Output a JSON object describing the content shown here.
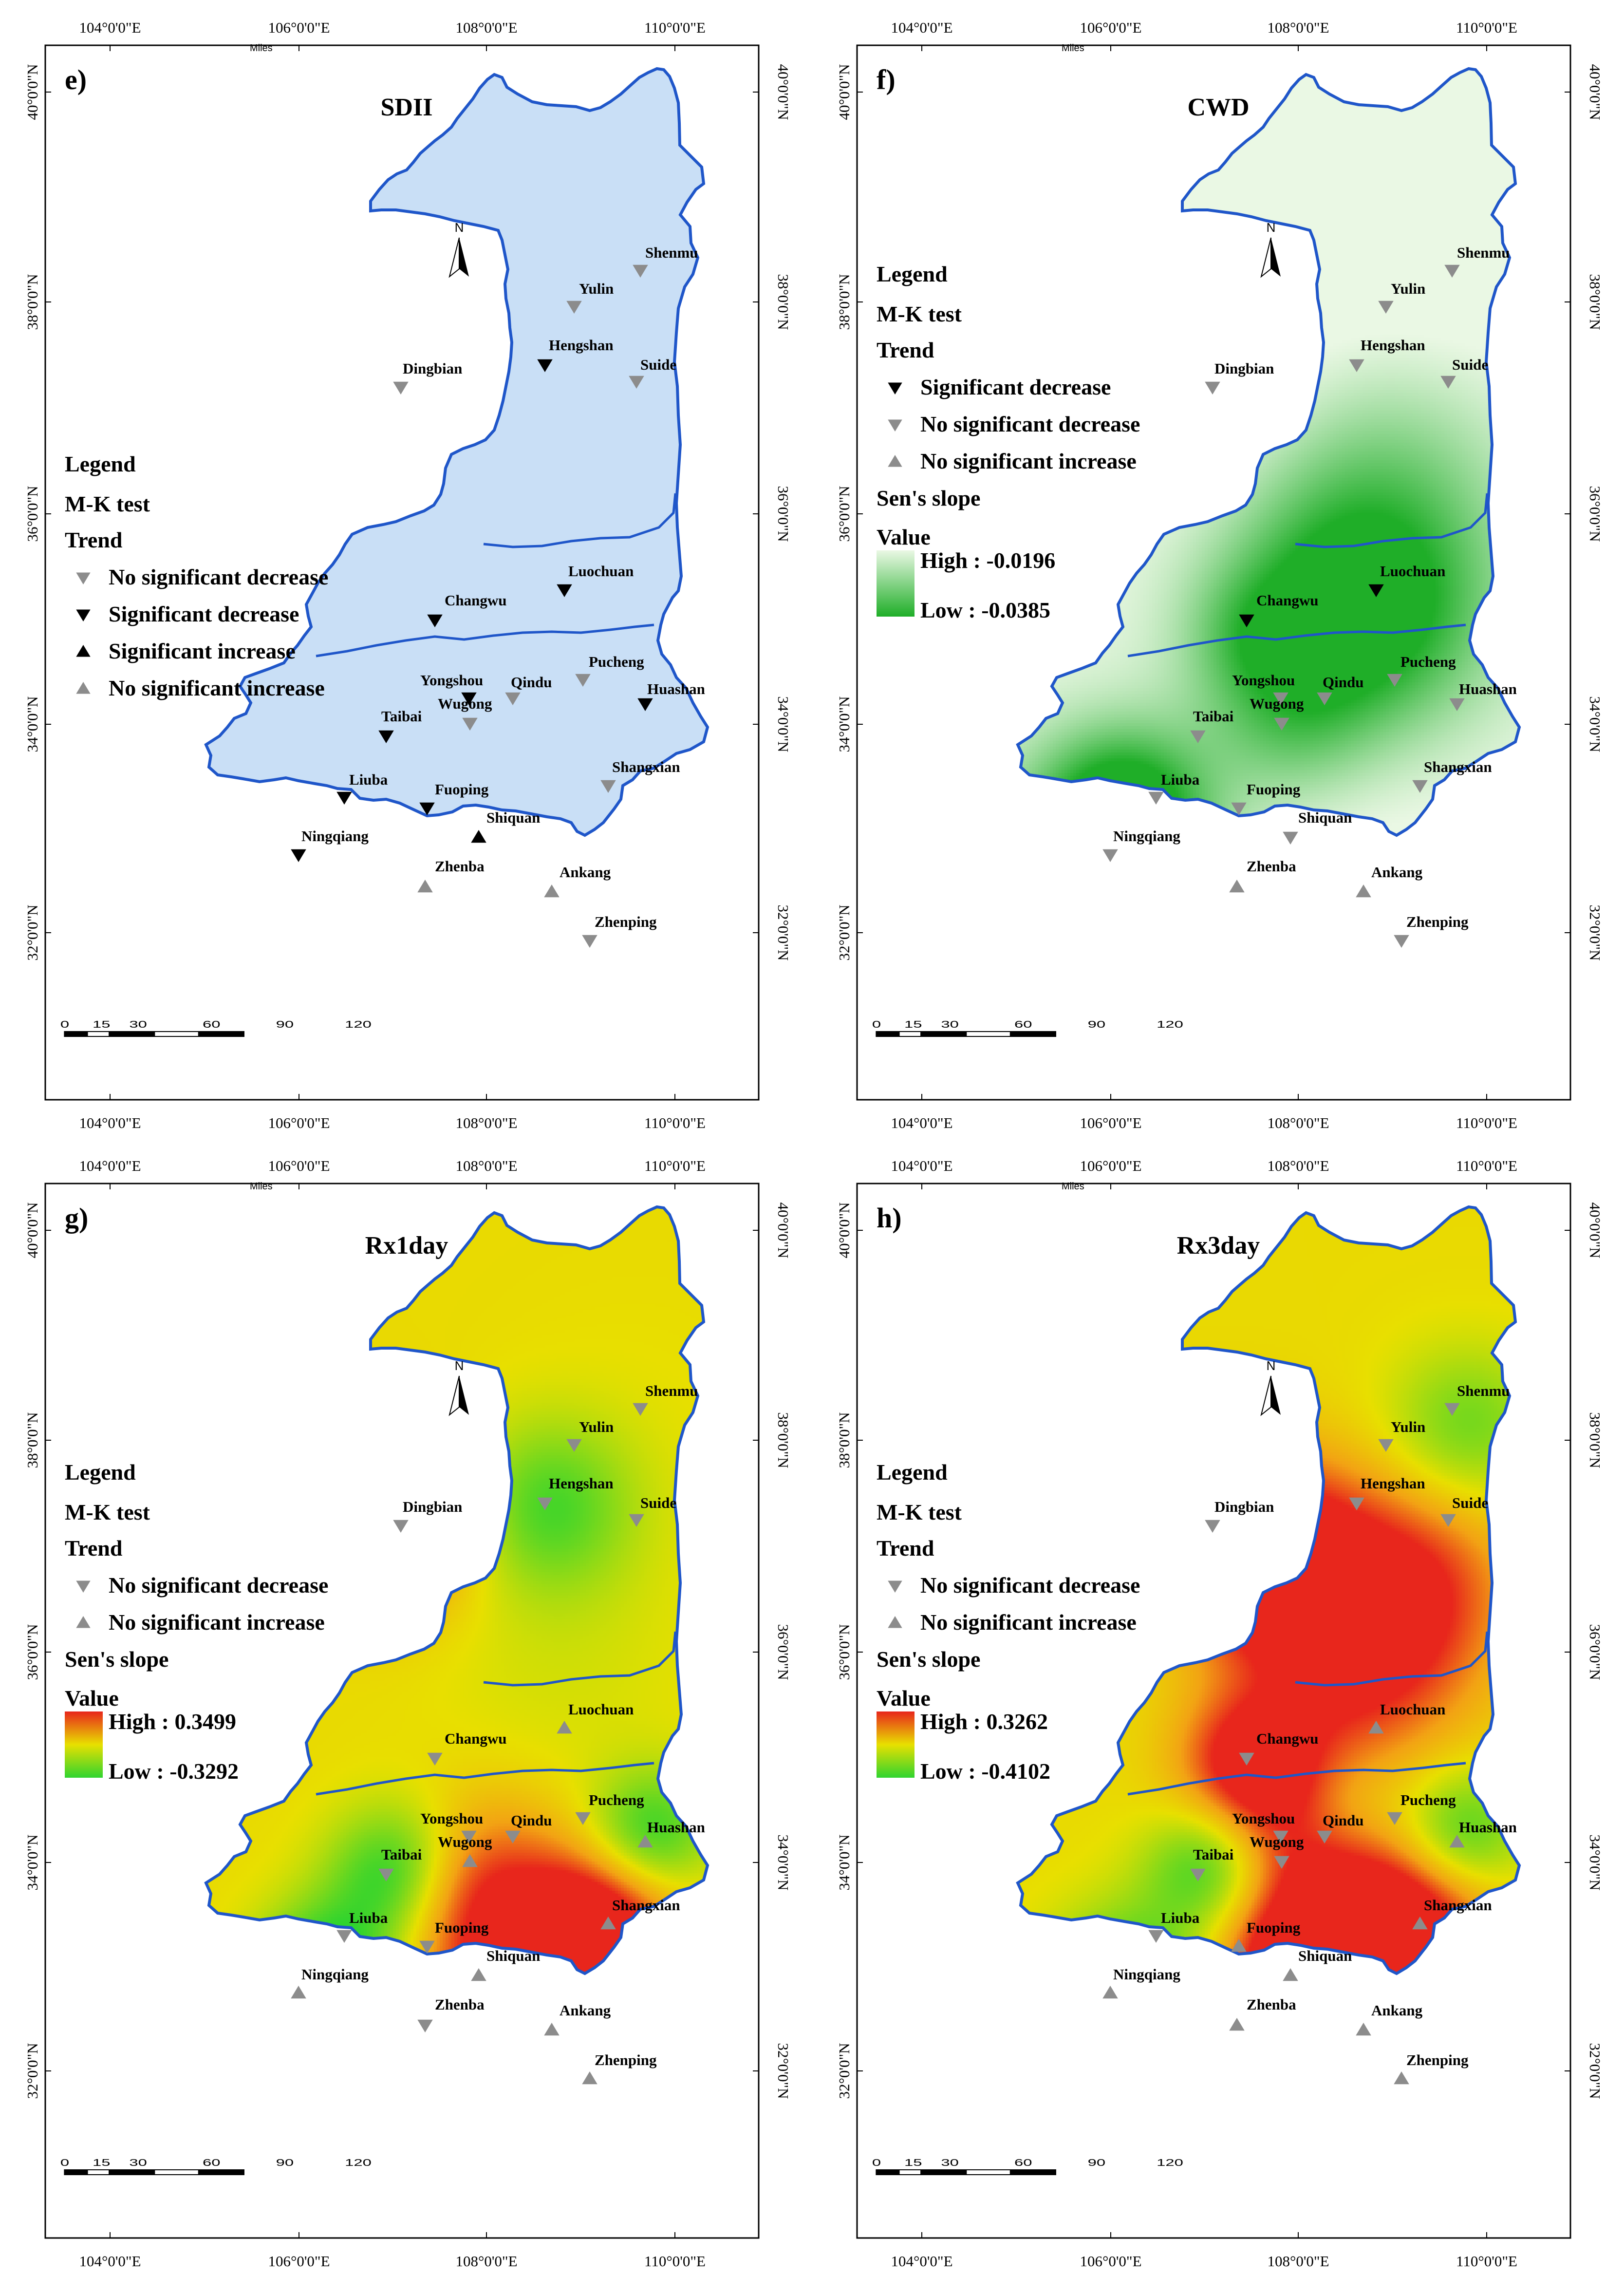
{
  "colors": {
    "sdii_fill": "#c9dff6",
    "boundary": "#1f56c9",
    "marker_gray": "#8c8c8c",
    "marker_black": "#000000",
    "cwd_high": "#eaf8e4",
    "cwd_low": "#1fae28",
    "rx_high": "#e8261c",
    "rx_mid": "#e8e000",
    "rx_low": "#2fd42f"
  },
  "axes": {
    "lon_labels": [
      "104°0'0\"E",
      "106°0'0\"E",
      "108°0'0\"E",
      "110°0'0\"E"
    ],
    "lat_labels": [
      "40°0'0\"N",
      "38°0'0\"N",
      "36°0'0\"N",
      "34°0'0\"N",
      "32°0'0\"N"
    ]
  },
  "scalebar": {
    "ticks": [
      "0",
      "15",
      "30",
      "60",
      "90",
      "120"
    ],
    "unit": "Miles"
  },
  "north_label": "N",
  "stations": [
    "Shenmu",
    "Yulin",
    "Hengshan",
    "Suide",
    "Dingbian",
    "Luochuan",
    "Changwu",
    "Pucheng",
    "Yongshou",
    "Qindu",
    "Wugong",
    "Huashan",
    "Taibai",
    "Shangxian",
    "Liuba",
    "Fuoping",
    "Shiquan",
    "Ningqiang",
    "Zhenba",
    "Ankang",
    "Zhenping"
  ],
  "panels": [
    {
      "letter": "e)",
      "title": "SDII",
      "legend": {
        "heading": "Legend",
        "test": "M-K test",
        "trend": "Trend",
        "entries": [
          {
            "symbol": "down",
            "color": "gray",
            "label": "No significant decrease"
          },
          {
            "symbol": "down",
            "color": "black",
            "label": "Significant decrease"
          },
          {
            "symbol": "up",
            "color": "black",
            "label": "Significant increase"
          },
          {
            "symbol": "up",
            "color": "gray",
            "label": "No significant increase"
          }
        ]
      },
      "station_trends": {
        "Shenmu": "nsd",
        "Yulin": "nsd",
        "Hengshan": "sd",
        "Suide": "nsd",
        "Dingbian": "nsd",
        "Luochuan": "sd",
        "Changwu": "sd",
        "Pucheng": "nsd",
        "Yongshou": "sd",
        "Qindu": "nsd",
        "Wugong": "nsd",
        "Huashan": "sd",
        "Taibai": "sd",
        "Shangxian": "nsd",
        "Liuba": "sd",
        "Fuoping": "sd",
        "Shiquan": "si",
        "Ningqiang": "sd",
        "Zhenba": "nsi",
        "Ankang": "nsi",
        "Zhenping": "nsd"
      }
    },
    {
      "letter": "f)",
      "title": "CWD",
      "legend": {
        "heading": "Legend",
        "test": "M-K test",
        "trend": "Trend",
        "entries": [
          {
            "symbol": "down",
            "color": "black",
            "label": "Significant decrease"
          },
          {
            "symbol": "down",
            "color": "gray",
            "label": "No significant decrease"
          },
          {
            "symbol": "up",
            "color": "gray",
            "label": "No significant increase"
          }
        ],
        "sens": "Sen's slope",
        "value": "Value",
        "high": "High : -0.0196",
        "low": "Low : -0.0385"
      },
      "station_trends": {
        "Shenmu": "nsd",
        "Yulin": "nsd",
        "Hengshan": "nsd",
        "Suide": "nsd",
        "Dingbian": "nsd",
        "Luochuan": "sd",
        "Changwu": "sd",
        "Pucheng": "nsd",
        "Yongshou": "nsd",
        "Qindu": "nsd",
        "Wugong": "nsd",
        "Huashan": "nsd",
        "Taibai": "nsd",
        "Shangxian": "nsd",
        "Liuba": "nsd",
        "Fuoping": "nsd",
        "Shiquan": "nsd",
        "Ningqiang": "nsd",
        "Zhenba": "nsi",
        "Ankang": "nsi",
        "Zhenping": "nsd"
      }
    },
    {
      "letter": "g)",
      "title": "Rx1day",
      "legend": {
        "heading": "Legend",
        "test": "M-K test",
        "trend": "Trend",
        "entries": [
          {
            "symbol": "down",
            "color": "gray",
            "label": "No significant decrease"
          },
          {
            "symbol": "up",
            "color": "gray",
            "label": "No significant increase"
          }
        ],
        "sens": "Sen's slope",
        "value": "Value",
        "high": "High : 0.3499",
        "low": "Low : -0.3292"
      },
      "station_trends": {
        "Shenmu": "nsd",
        "Yulin": "nsd",
        "Hengshan": "nsd",
        "Suide": "nsd",
        "Dingbian": "nsd",
        "Luochuan": "nsi",
        "Changwu": "nsd",
        "Pucheng": "nsd",
        "Yongshou": "nsd",
        "Qindu": "nsd",
        "Wugong": "nsi",
        "Huashan": "nsi",
        "Taibai": "nsd",
        "Shangxian": "nsi",
        "Liuba": "nsd",
        "Fuoping": "nsd",
        "Shiquan": "nsi",
        "Ningqiang": "nsi",
        "Zhenba": "nsd",
        "Ankang": "nsi",
        "Zhenping": "nsi"
      }
    },
    {
      "letter": "h)",
      "title": "Rx3day",
      "legend": {
        "heading": "Legend",
        "test": "M-K test",
        "trend": "Trend",
        "entries": [
          {
            "symbol": "down",
            "color": "gray",
            "label": "No significant decrease"
          },
          {
            "symbol": "up",
            "color": "gray",
            "label": "No significant increase"
          }
        ],
        "sens": "Sen's slope",
        "value": "Value",
        "high": "High : 0.3262",
        "low": "Low : -0.4102"
      },
      "station_trends": {
        "Shenmu": "nsd",
        "Yulin": "nsd",
        "Hengshan": "nsd",
        "Suide": "nsd",
        "Dingbian": "nsd",
        "Luochuan": "nsi",
        "Changwu": "nsd",
        "Pucheng": "nsd",
        "Yongshou": "nsd",
        "Qindu": "nsd",
        "Wugong": "nsd",
        "Huashan": "nsi",
        "Taibai": "nsd",
        "Shangxian": "nsi",
        "Liuba": "nsd",
        "Fuoping": "nsi",
        "Shiquan": "nsi",
        "Ningqiang": "nsi",
        "Zhenba": "nsi",
        "Ankang": "nsi",
        "Zhenping": "nsi"
      }
    }
  ]
}
